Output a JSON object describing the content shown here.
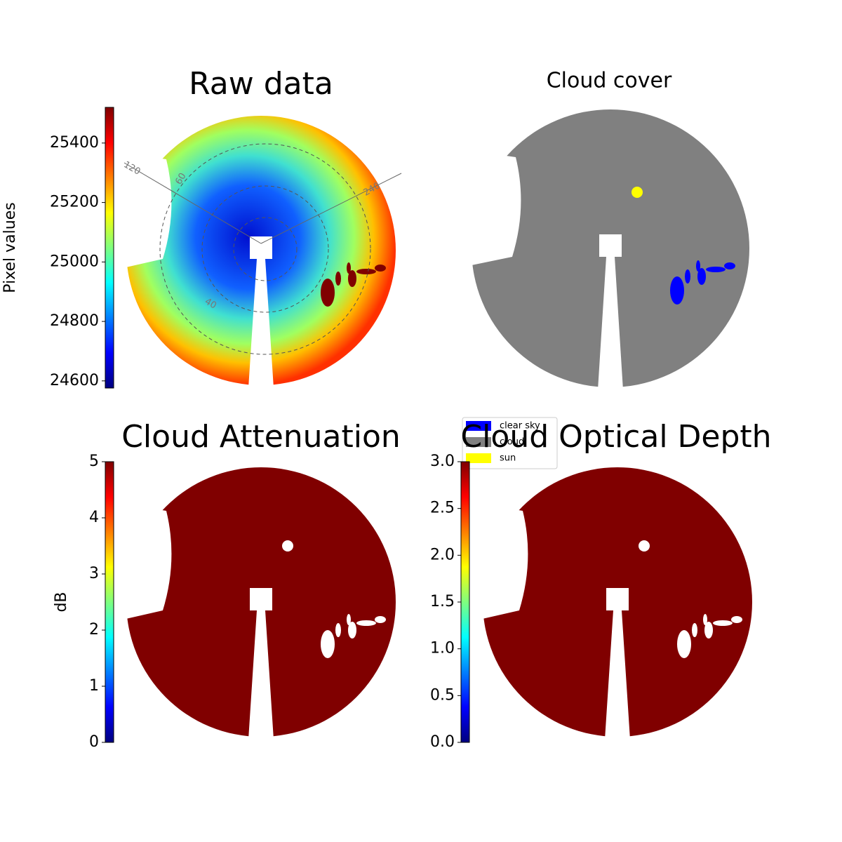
{
  "chart_data": [
    {
      "type": "heatmap",
      "title": "Raw data",
      "colorbar_label": "Pixel values",
      "colormap": "jet",
      "clim": [
        24576,
        25520
      ],
      "cticks": [
        24600,
        24800,
        25000,
        25200,
        25400
      ],
      "annotations": [
        "120",
        "60",
        "240",
        "40"
      ]
    },
    {
      "type": "mask",
      "title": "Cloud cover",
      "legend": [
        {
          "name": "clear sky",
          "color": "#0000ff"
        },
        {
          "name": "cloud",
          "color": "#808080"
        },
        {
          "name": "sun",
          "color": "#ffff00"
        }
      ]
    },
    {
      "type": "heatmap",
      "title": "Cloud Attenuation",
      "colorbar_label": "dB",
      "colormap": "jet",
      "clim": [
        0,
        5
      ],
      "cticks": [
        0,
        1,
        2,
        3,
        4,
        5
      ]
    },
    {
      "type": "heatmap",
      "title": "Cloud Optical Depth",
      "colormap": "jet",
      "clim": [
        0,
        3
      ],
      "cticks": [
        {
          "value": 0,
          "label": "0.0"
        },
        {
          "value": 0.5,
          "label": "0.5"
        },
        {
          "value": 1,
          "label": "1.0"
        },
        {
          "value": 1.5,
          "label": "1.5"
        },
        {
          "value": 2,
          "label": "2.0"
        },
        {
          "value": 2.5,
          "label": "2.5"
        },
        {
          "value": 3,
          "label": "3.0"
        }
      ]
    }
  ]
}
